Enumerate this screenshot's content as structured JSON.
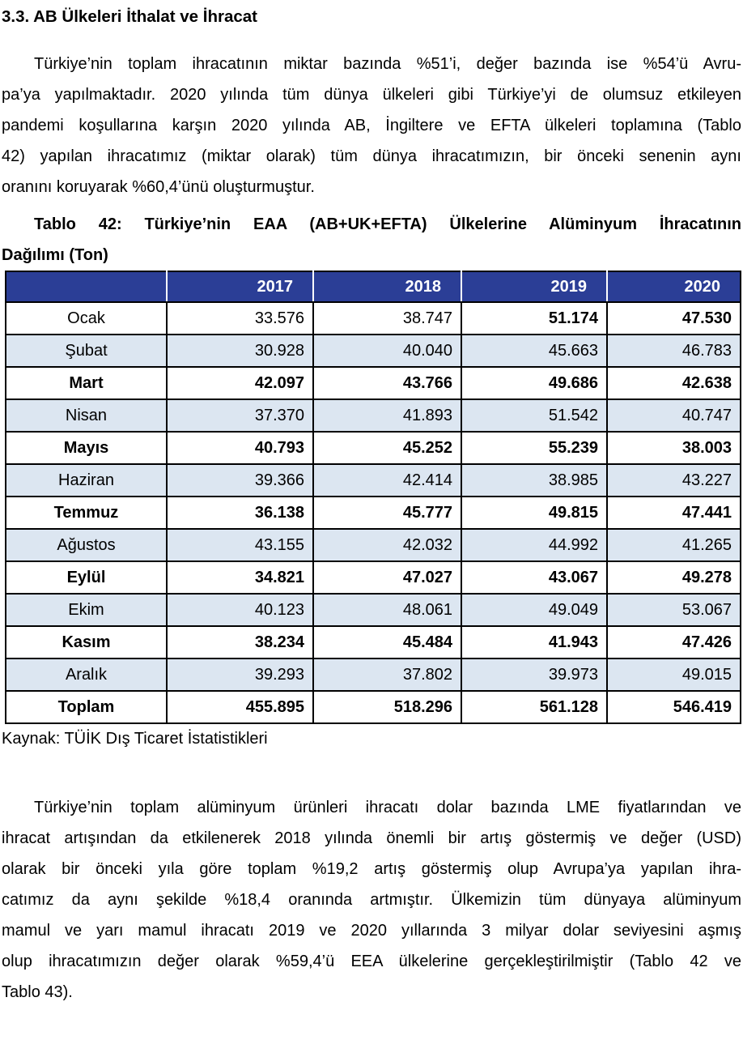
{
  "heading": "3.3. AB Ülkeleri İthalat ve İhracat",
  "paragraph1": {
    "lines": [
      "Türkiye’nin toplam ihracatının miktar bazında %51’i, değer bazında ise %54’ü Avru-",
      "pa’ya yapılmaktadır. 2020 yılında tüm dünya ülkeleri gibi Türkiye’yi de olumsuz etkileyen",
      "pandemi koşullarına karşın 2020 yılında AB, İngiltere ve EFTA ülkeleri toplamına (Tablo",
      "42) yapılan ihracatımız (miktar olarak) tüm dünya ihracatımızın, bir önceki senenin aynı",
      "oranını koruyarak %60,4’ünü oluşturmuştur."
    ]
  },
  "table_caption": {
    "lines": [
      "Tablo 42: Türkiye’nin EAA (AB+UK+EFTA) Ülkelerine Alüminyum İhracatının",
      "Dağılımı (Ton)"
    ]
  },
  "table": {
    "header": [
      "",
      "2017",
      "2018",
      "2019",
      "2020"
    ],
    "rows": [
      {
        "label": "Ocak",
        "bold_label": false,
        "values": [
          "33.576",
          "38.747",
          "51.174",
          "47.530"
        ],
        "bold_values": [
          false,
          false,
          true,
          true
        ]
      },
      {
        "label": "Şubat",
        "bold_label": false,
        "values": [
          "30.928",
          "40.040",
          "45.663",
          "46.783"
        ],
        "bold_values": [
          false,
          false,
          false,
          false
        ]
      },
      {
        "label": "Mart",
        "bold_label": true,
        "values": [
          "42.097",
          "43.766",
          "49.686",
          "42.638"
        ],
        "bold_values": [
          true,
          true,
          true,
          true
        ]
      },
      {
        "label": "Nisan",
        "bold_label": false,
        "values": [
          "37.370",
          "41.893",
          "51.542",
          "40.747"
        ],
        "bold_values": [
          false,
          false,
          false,
          false
        ]
      },
      {
        "label": "Mayıs",
        "bold_label": true,
        "values": [
          "40.793",
          "45.252",
          "55.239",
          "38.003"
        ],
        "bold_values": [
          true,
          true,
          true,
          true
        ]
      },
      {
        "label": "Haziran",
        "bold_label": false,
        "values": [
          "39.366",
          "42.414",
          "38.985",
          "43.227"
        ],
        "bold_values": [
          false,
          false,
          false,
          false
        ]
      },
      {
        "label": "Temmuz",
        "bold_label": true,
        "values": [
          "36.138",
          "45.777",
          "49.815",
          "47.441"
        ],
        "bold_values": [
          true,
          true,
          true,
          true
        ]
      },
      {
        "label": "Ağustos",
        "bold_label": false,
        "values": [
          "43.155",
          "42.032",
          "44.992",
          "41.265"
        ],
        "bold_values": [
          false,
          false,
          false,
          false
        ]
      },
      {
        "label": "Eylül",
        "bold_label": true,
        "values": [
          "34.821",
          "47.027",
          "43.067",
          "49.278"
        ],
        "bold_values": [
          true,
          true,
          true,
          true
        ]
      },
      {
        "label": "Ekim",
        "bold_label": false,
        "values": [
          "40.123",
          "48.061",
          "49.049",
          "53.067"
        ],
        "bold_values": [
          false,
          false,
          false,
          false
        ]
      },
      {
        "label": "Kasım",
        "bold_label": true,
        "values": [
          "38.234",
          "45.484",
          "41.943",
          "47.426"
        ],
        "bold_values": [
          true,
          true,
          true,
          true
        ]
      },
      {
        "label": "Aralık",
        "bold_label": false,
        "values": [
          "39.293",
          "37.802",
          "39.973",
          "49.015"
        ],
        "bold_values": [
          false,
          false,
          false,
          false
        ]
      },
      {
        "label": "Toplam",
        "bold_label": true,
        "values": [
          "455.895",
          "518.296",
          "561.128",
          "546.419"
        ],
        "bold_values": [
          true,
          true,
          true,
          true
        ],
        "is_total": true
      }
    ]
  },
  "source_note": "Kaynak: TÜİK Dış Ticaret İstatistikleri",
  "paragraph2": {
    "lines": [
      "Türkiye’nin toplam alüminyum ürünleri ihracatı dolar bazında LME fiyatlarından ve",
      "ihracat artışından da etkilenerek 2018 yılında önemli bir artış göstermiş ve değer (USD)",
      "olarak bir önceki yıla göre toplam %19,2 artış göstermiş olup Avrupa’ya yapılan ihra-",
      "catımız da aynı şekilde %18,4 oranında artmıştır. Ülkemizin tüm dünyaya alüminyum",
      "mamul ve yarı mamul ihracatı 2019 ve 2020 yıllarında 3 milyar dolar seviyesini aşmış",
      "olup ihracatımızın değer olarak %59,4’ü EEA ülkelerine gerçekleştirilmiştir (Tablo 42 ve",
      "Tablo 43)."
    ]
  },
  "colors": {
    "header_bg": "#2B3E96",
    "header_text": "#FFFFFF",
    "alt_row_bg": "#DCE6F1",
    "row_bg": "#FFFFFF",
    "border": "#000000",
    "text": "#000000"
  }
}
